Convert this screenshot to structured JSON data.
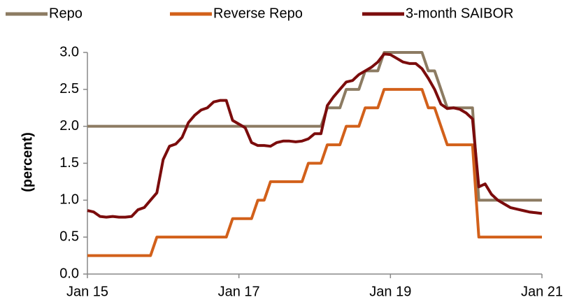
{
  "chart_data": {
    "type": "line",
    "categories": [
      "Jan 15",
      null,
      null,
      null,
      null,
      null,
      null,
      null,
      null,
      null,
      null,
      null,
      null,
      null,
      null,
      null,
      null,
      null,
      null,
      null,
      null,
      null,
      null,
      null,
      "Jan 17",
      null,
      null,
      null,
      null,
      null,
      null,
      null,
      null,
      null,
      null,
      null,
      null,
      null,
      null,
      null,
      null,
      null,
      null,
      null,
      null,
      null,
      null,
      null,
      "Jan 19",
      null,
      null,
      null,
      null,
      null,
      null,
      null,
      null,
      null,
      null,
      null,
      null,
      null,
      null,
      null,
      null,
      null,
      null,
      null,
      null,
      null,
      null,
      null,
      "Jan 21"
    ],
    "series": [
      {
        "name": "Repo",
        "color": "#8c7b62",
        "values": [
          2,
          2,
          2,
          2,
          2,
          2,
          2,
          2,
          2,
          2,
          2,
          2,
          2,
          2,
          2,
          2,
          2,
          2,
          2,
          2,
          2,
          2,
          2,
          2,
          2,
          2,
          2,
          2,
          2,
          2,
          2,
          2,
          2,
          2,
          2,
          2,
          2,
          2,
          2.25,
          2.25,
          2.25,
          2.5,
          2.5,
          2.5,
          2.75,
          2.75,
          2.75,
          3,
          3,
          3,
          3,
          3,
          3,
          3,
          2.75,
          2.75,
          2.5,
          2.25,
          2.25,
          2.25,
          2.25,
          2.25,
          1,
          1,
          1,
          1,
          1,
          1,
          1,
          1,
          1,
          1,
          1
        ]
      },
      {
        "name": "Reverse Repo",
        "color": "#d2601a",
        "values": [
          0.25,
          0.25,
          0.25,
          0.25,
          0.25,
          0.25,
          0.25,
          0.25,
          0.25,
          0.25,
          0.25,
          0.5,
          0.5,
          0.5,
          0.5,
          0.5,
          0.5,
          0.5,
          0.5,
          0.5,
          0.5,
          0.5,
          0.5,
          0.75,
          0.75,
          0.75,
          0.75,
          1,
          1,
          1.25,
          1.25,
          1.25,
          1.25,
          1.25,
          1.25,
          1.5,
          1.5,
          1.5,
          1.75,
          1.75,
          1.75,
          2,
          2,
          2,
          2.25,
          2.25,
          2.25,
          2.5,
          2.5,
          2.5,
          2.5,
          2.5,
          2.5,
          2.5,
          2.25,
          2.25,
          2,
          1.75,
          1.75,
          1.75,
          1.75,
          1.75,
          0.5,
          0.5,
          0.5,
          0.5,
          0.5,
          0.5,
          0.5,
          0.5,
          0.5,
          0.5,
          0.5
        ]
      },
      {
        "name": "3-month SAIBOR",
        "color": "#7b0c0c",
        "values": [
          0.86,
          0.84,
          0.78,
          0.77,
          0.78,
          0.77,
          0.77,
          0.78,
          0.87,
          0.9,
          1.0,
          1.1,
          1.55,
          1.73,
          1.76,
          1.85,
          2.05,
          2.15,
          2.22,
          2.25,
          2.33,
          2.35,
          2.35,
          2.08,
          2.03,
          1.98,
          1.78,
          1.74,
          1.74,
          1.73,
          1.78,
          1.8,
          1.8,
          1.79,
          1.8,
          1.83,
          1.9,
          1.9,
          2.28,
          2.4,
          2.5,
          2.6,
          2.62,
          2.7,
          2.75,
          2.8,
          2.87,
          2.98,
          2.97,
          2.92,
          2.87,
          2.85,
          2.85,
          2.78,
          2.65,
          2.5,
          2.3,
          2.24,
          2.25,
          2.23,
          2.18,
          2.1,
          1.18,
          1.22,
          1.08,
          1.0,
          0.95,
          0.9,
          0.88,
          0.86,
          0.84,
          0.83,
          0.82
        ]
      }
    ],
    "y_label": "(percent)",
    "ylim": [
      0,
      3
    ],
    "yticks": [
      {
        "value": 0,
        "label": "0.0"
      },
      {
        "value": 0.5,
        "label": "0.5"
      },
      {
        "value": 1,
        "label": "1.0"
      },
      {
        "value": 1.5,
        "label": "1.5"
      },
      {
        "value": 2,
        "label": "2.0"
      },
      {
        "value": 2.5,
        "label": "2.5"
      },
      {
        "value": 3,
        "label": "3.0"
      }
    ],
    "legend": "top"
  }
}
